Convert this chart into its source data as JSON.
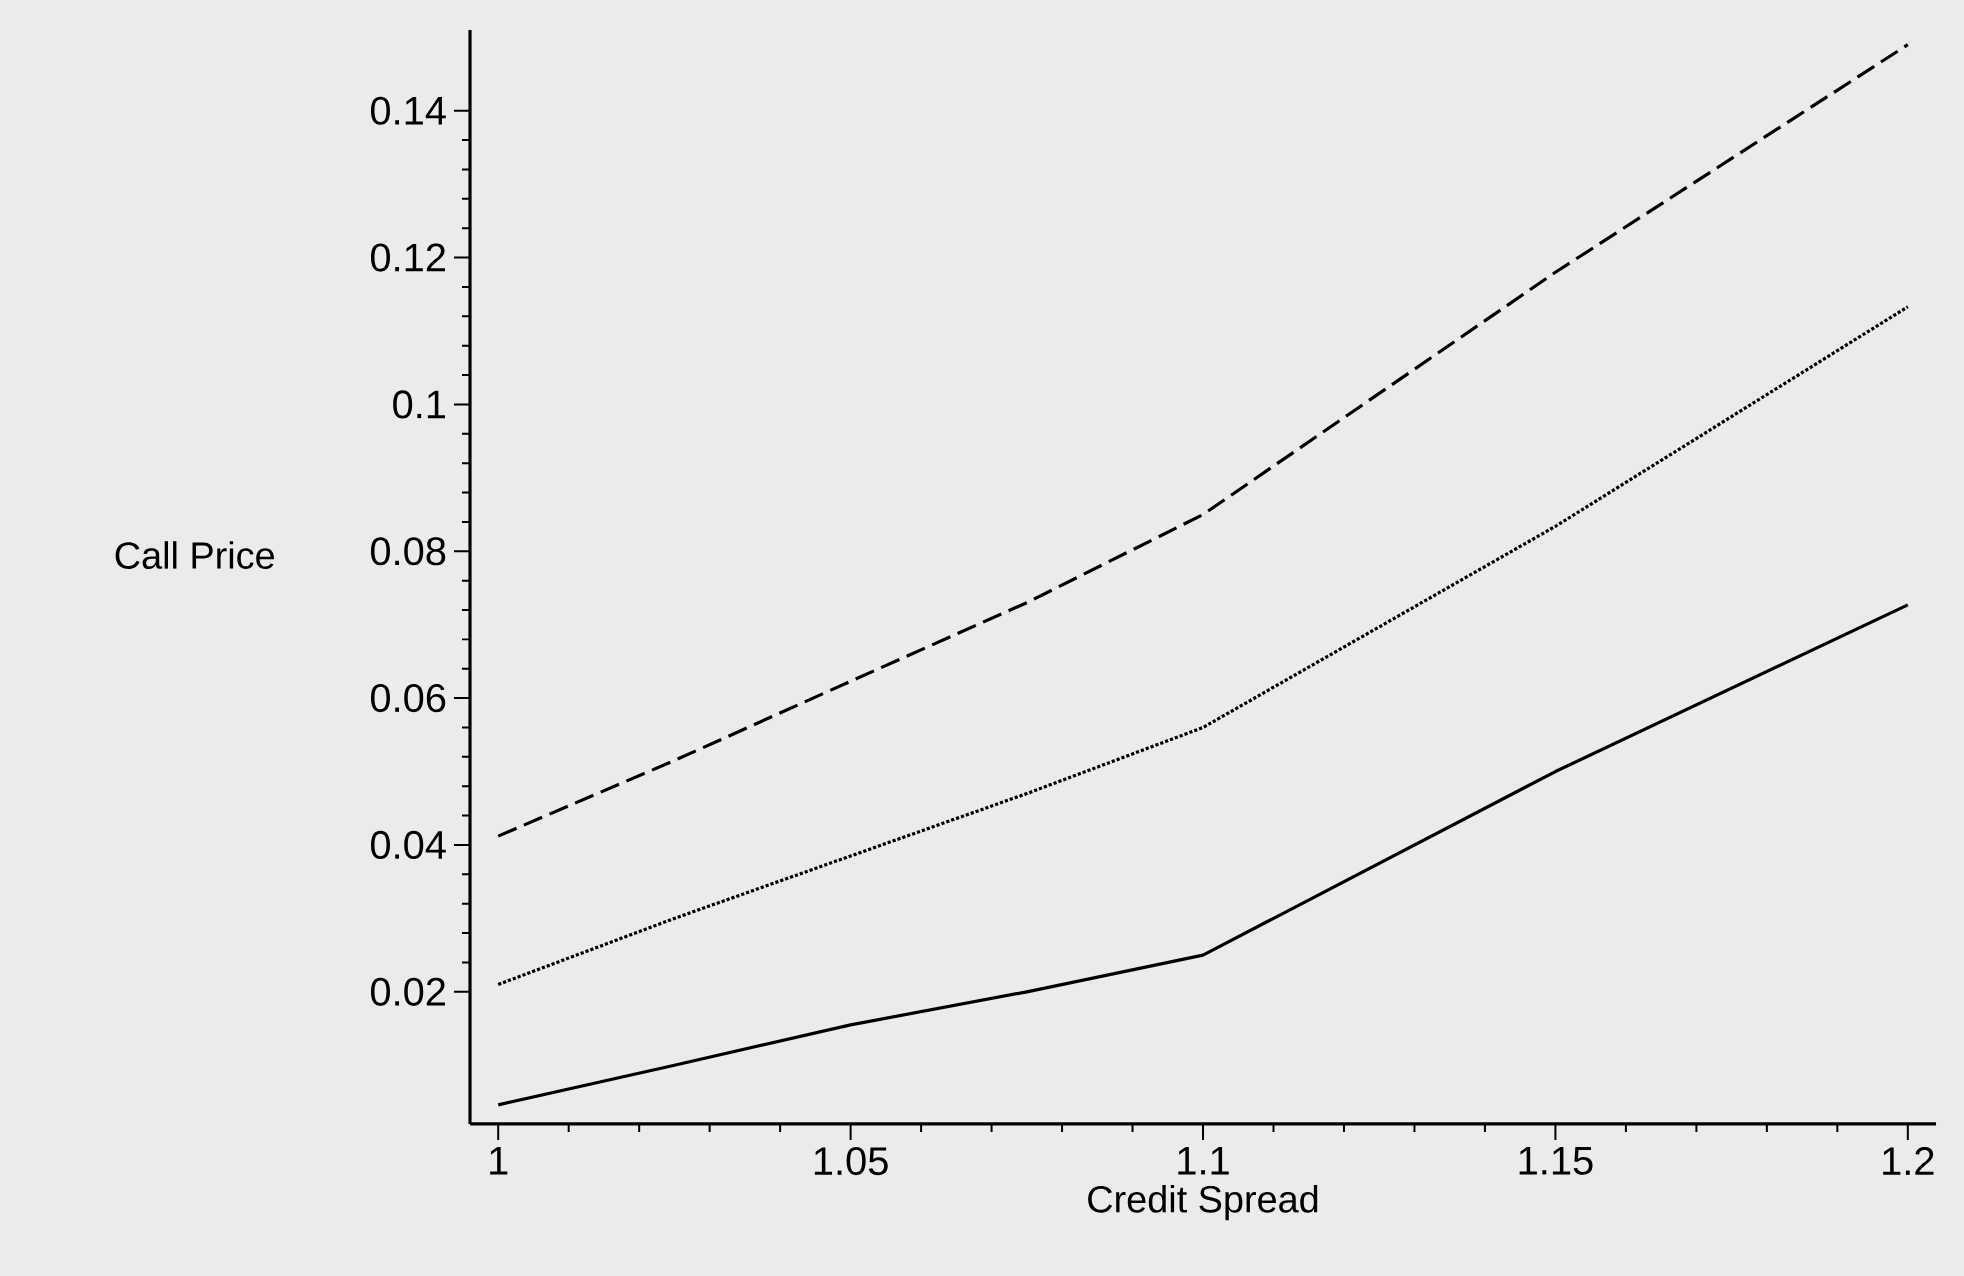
{
  "chart_data": {
    "type": "line",
    "xlabel": "Credit Spread",
    "ylabel": "Call Price",
    "x": [
      1,
      1.025,
      1.05,
      1.075,
      1.1,
      1.15,
      1.2
    ],
    "series": [
      {
        "color": "#000000",
        "line_style": "solid",
        "values": [
          0.0046,
          0.01,
          0.0155,
          0.02,
          0.025,
          0.05,
          0.0727
        ]
      },
      {
        "color": "#000000",
        "line_style": "dotted",
        "values": [
          0.021,
          0.03,
          0.0385,
          0.047,
          0.056,
          0.0834,
          0.1133
        ]
      },
      {
        "color": "#000000",
        "line_style": "dashed",
        "values": [
          0.0412,
          0.0515,
          0.0623,
          0.073,
          0.085,
          0.118,
          0.149
        ]
      }
    ],
    "xlim": [
      0.996,
      1.204
    ],
    "ylim": [
      0.002,
      0.151
    ],
    "xticks": [
      1,
      1.05,
      1.1,
      1.15,
      1.2
    ],
    "yticks": [
      0.02,
      0.04,
      0.06,
      0.08,
      0.1,
      0.12,
      0.14
    ],
    "marker": "none"
  }
}
